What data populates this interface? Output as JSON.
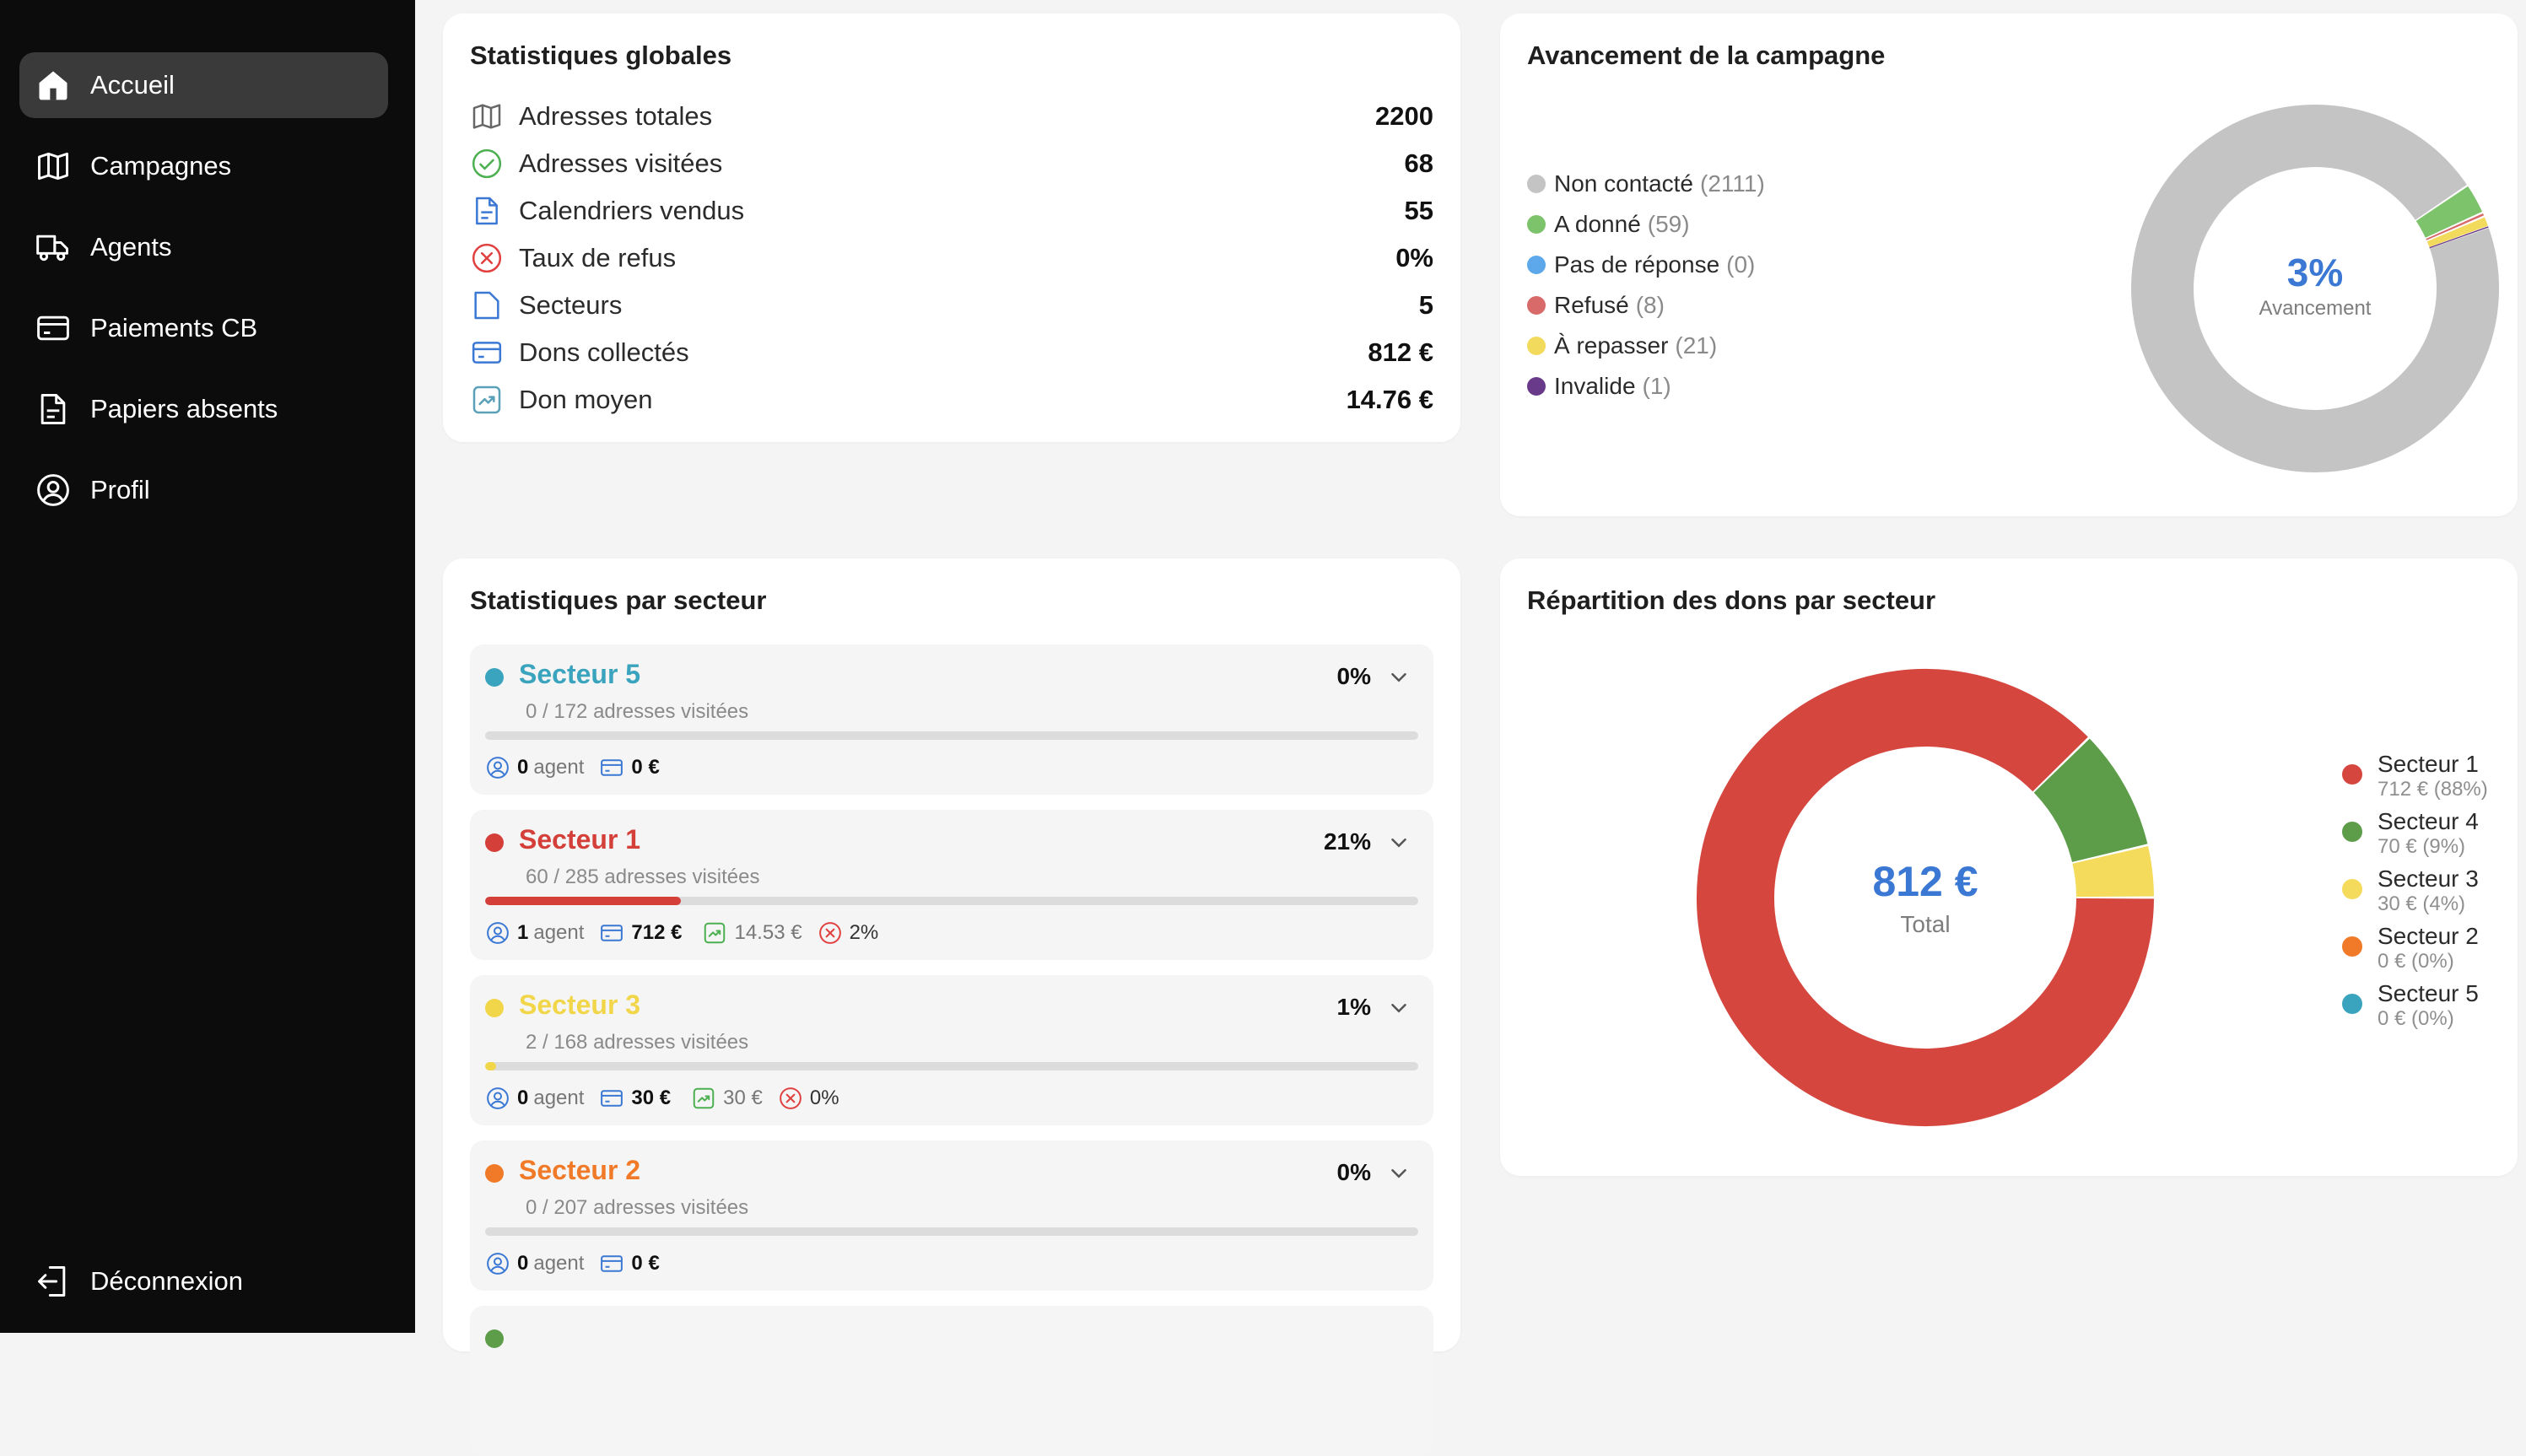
{
  "nav": {
    "items": [
      {
        "label": "Accueil",
        "icon": "home-icon"
      },
      {
        "label": "Campagnes",
        "icon": "map-icon"
      },
      {
        "label": "Agents",
        "icon": "truck-icon"
      },
      {
        "label": "Paiements CB",
        "icon": "credit-card-icon"
      },
      {
        "label": "Papiers absents",
        "icon": "document-icon"
      },
      {
        "label": "Profil",
        "icon": "user-circle-icon"
      }
    ],
    "logout": "Déconnexion"
  },
  "global_stats": {
    "title": "Statistiques globales",
    "rows": [
      {
        "label": "Adresses totales",
        "value": "2200",
        "icon": "map-icon",
        "color": "#555555"
      },
      {
        "label": "Adresses visitées",
        "value": "68",
        "icon": "check-circle-icon",
        "color": "#4caf50"
      },
      {
        "label": "Calendriers vendus",
        "value": "55",
        "icon": "document-icon",
        "color": "#3a78d4"
      },
      {
        "label": "Taux de refus",
        "value": "0%",
        "icon": "x-circle-icon",
        "color": "#e04040"
      },
      {
        "label": "Secteurs",
        "value": "5",
        "icon": "folder-icon",
        "color": "#3a78d4"
      },
      {
        "label": "Dons collectés",
        "value": "812 €",
        "icon": "credit-card-icon",
        "color": "#3a78d4"
      },
      {
        "label": "Don moyen",
        "value": "14.76 €",
        "icon": "trend-icon",
        "color": "#5aa0b8"
      }
    ]
  },
  "campaign": {
    "title": "Avancement de la campagne",
    "center_value": "3%",
    "center_label": "Avancement",
    "legend": [
      {
        "label": "Non contacté",
        "count": "(2111)",
        "value": 2111,
        "color": "#c4c4c4"
      },
      {
        "label": "A donné",
        "count": "(59)",
        "value": 59,
        "color": "#7dc36b"
      },
      {
        "label": "Pas de réponse",
        "count": "(0)",
        "value": 0,
        "color": "#5ca8ea"
      },
      {
        "label": "Refusé",
        "count": "(8)",
        "value": 8,
        "color": "#d86a6a"
      },
      {
        "label": "À repasser",
        "count": "(21)",
        "value": 21,
        "color": "#f2da5c"
      },
      {
        "label": "Invalide",
        "count": "(1)",
        "value": 1,
        "color": "#6a3a8a"
      }
    ]
  },
  "sectors": {
    "title": "Statistiques par secteur",
    "items": [
      {
        "name": "Secteur 5",
        "color": "#3aa3bd",
        "pct": "0%",
        "progress": 0.0,
        "sub": "0 / 172 adresses visitées",
        "agents": "0",
        "agent_label": "agent",
        "amount": "0 €",
        "avg": "",
        "refusal": ""
      },
      {
        "name": "Secteur 1",
        "color": "#d43f3a",
        "pct": "21%",
        "progress": 0.21,
        "sub": "60 / 285 adresses visitées",
        "agents": "1",
        "agent_label": "agent",
        "amount": "712 €",
        "avg": "14.53 €",
        "refusal": "2%"
      },
      {
        "name": "Secteur 3",
        "color": "#f2d64a",
        "pct": "1%",
        "progress": 0.012,
        "sub": "2 / 168 adresses visitées",
        "agents": "0",
        "agent_label": "agent",
        "amount": "30 €",
        "avg": "30 €",
        "refusal": "0%"
      },
      {
        "name": "Secteur 2",
        "color": "#f07a28",
        "pct": "0%",
        "progress": 0.0,
        "sub": "0 / 207 adresses visitées",
        "agents": "0",
        "agent_label": "agent",
        "amount": "0 €",
        "avg": "",
        "refusal": ""
      }
    ]
  },
  "donations": {
    "title": "Répartition des dons par secteur",
    "center_value": "812 €",
    "center_label": "Total",
    "legend": [
      {
        "name": "Secteur 1",
        "detail": "712 € (88%)",
        "value": 712,
        "color": "#d5463f"
      },
      {
        "name": "Secteur 4",
        "detail": "70 € (9%)",
        "value": 70,
        "color": "#5d9d4a"
      },
      {
        "name": "Secteur 3",
        "detail": "30 € (4%)",
        "value": 30,
        "color": "#f5db5c"
      },
      {
        "name": "Secteur 2",
        "detail": "0 € (0%)",
        "value": 0,
        "color": "#f07a28"
      },
      {
        "name": "Secteur 5",
        "detail": "0 € (0%)",
        "value": 0,
        "color": "#3aa3bd"
      }
    ]
  }
}
